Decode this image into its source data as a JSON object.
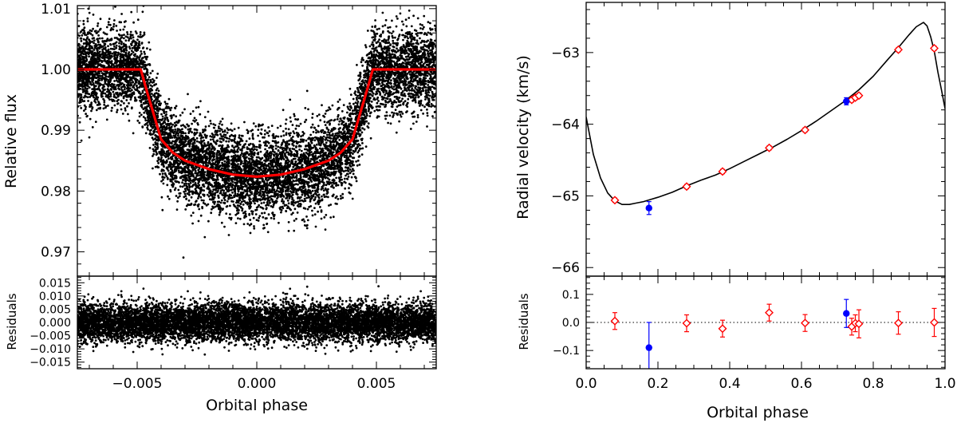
{
  "chart_data": [
    {
      "id": "lc_top",
      "type": "scatter",
      "xlabel": "",
      "ylabel": "Relative flux",
      "xlim": [
        -0.0075,
        0.0075
      ],
      "ylim": [
        0.966,
        1.0105
      ],
      "xticks": [
        -0.005,
        0.0,
        0.005
      ],
      "xtick_labels": [
        "",
        "",
        ""
      ],
      "yticks": [
        0.97,
        0.98,
        0.99,
        1.0,
        1.01
      ],
      "ytick_labels": [
        "0.97",
        "0.98",
        "0.99",
        "1.00",
        "1.01"
      ],
      "scatter_color": "#000000",
      "model_color": "#ff0000",
      "model": {
        "name": "transit model",
        "points": [
          [
            -0.0075,
            1.0
          ],
          [
            -0.00485,
            1.0
          ],
          [
            -0.0046,
            0.9965
          ],
          [
            -0.0043,
            0.9925
          ],
          [
            -0.004,
            0.9885
          ],
          [
            -0.0035,
            0.9863
          ],
          [
            -0.003,
            0.985
          ],
          [
            -0.002,
            0.9836
          ],
          [
            -0.001,
            0.9827
          ],
          [
            0.0,
            0.98235
          ],
          [
            0.001,
            0.9827
          ],
          [
            0.002,
            0.9836
          ],
          [
            0.003,
            0.985
          ],
          [
            0.0035,
            0.9863
          ],
          [
            0.004,
            0.9885
          ],
          [
            0.0043,
            0.9925
          ],
          [
            0.0046,
            0.9965
          ],
          [
            0.00485,
            1.0
          ],
          [
            0.0075,
            1.0
          ]
        ]
      },
      "scatter": {
        "name": "photometry",
        "n_points": 9000,
        "scatter_sigma": 0.0042
      }
    },
    {
      "id": "lc_resid",
      "type": "scatter",
      "xlabel": "Orbital phase",
      "ylabel": "Residuals",
      "xlim": [
        -0.0075,
        0.0075
      ],
      "ylim": [
        -0.0175,
        0.0175
      ],
      "xticks": [
        -0.005,
        0.0,
        0.005
      ],
      "xtick_labels": [
        "−0.005",
        "0.000",
        "0.005"
      ],
      "yticks": [
        -0.015,
        -0.01,
        -0.005,
        0.0,
        0.005,
        0.01,
        0.015
      ],
      "ytick_labels": [
        "−0.015",
        "−0.010",
        "−0.005",
        "0.000",
        "0.005",
        "0.010",
        "0.015"
      ],
      "scatter": {
        "name": "residuals",
        "n_points": 9000,
        "scatter_sigma": 0.0042
      }
    },
    {
      "id": "rv_top",
      "type": "scatter",
      "xlabel": "",
      "ylabel": "Radial velocity (km/s)",
      "xlim": [
        0.0,
        1.0
      ],
      "ylim": [
        -66.12,
        -62.3
      ],
      "xticks": [
        0.0,
        0.2,
        0.4,
        0.6,
        0.8,
        1.0
      ],
      "xtick_labels": [
        "",
        "",
        "",
        "",
        "",
        ""
      ],
      "yticks": [
        -66,
        -65,
        -64,
        -63
      ],
      "ytick_labels": [
        "−66",
        "−65",
        "−64",
        "−63"
      ],
      "model": {
        "name": "orbit model",
        "color": "#000000",
        "points": [
          [
            0.0,
            -63.9
          ],
          [
            0.02,
            -64.42
          ],
          [
            0.04,
            -64.75
          ],
          [
            0.06,
            -64.96
          ],
          [
            0.08,
            -65.07
          ],
          [
            0.1,
            -65.12
          ],
          [
            0.12,
            -65.12
          ],
          [
            0.14,
            -65.1
          ],
          [
            0.16,
            -65.08
          ],
          [
            0.18,
            -65.05
          ],
          [
            0.2,
            -65.02
          ],
          [
            0.24,
            -64.95
          ],
          [
            0.28,
            -64.86
          ],
          [
            0.32,
            -64.78
          ],
          [
            0.36,
            -64.71
          ],
          [
            0.4,
            -64.62
          ],
          [
            0.44,
            -64.52
          ],
          [
            0.48,
            -64.42
          ],
          [
            0.52,
            -64.32
          ],
          [
            0.56,
            -64.21
          ],
          [
            0.6,
            -64.09
          ],
          [
            0.64,
            -63.96
          ],
          [
            0.68,
            -63.82
          ],
          [
            0.72,
            -63.68
          ],
          [
            0.76,
            -63.52
          ],
          [
            0.8,
            -63.33
          ],
          [
            0.84,
            -63.1
          ],
          [
            0.87,
            -62.93
          ],
          [
            0.9,
            -62.75
          ],
          [
            0.92,
            -62.64
          ],
          [
            0.94,
            -62.58
          ],
          [
            0.95,
            -62.63
          ],
          [
            0.96,
            -62.78
          ],
          [
            0.97,
            -62.98
          ],
          [
            0.98,
            -63.27
          ],
          [
            0.99,
            -63.52
          ],
          [
            1.0,
            -63.78
          ]
        ]
      },
      "series": [
        {
          "name": "red",
          "color": "#ff0000",
          "marker": "diamond",
          "x": [
            0.08,
            0.28,
            0.38,
            0.51,
            0.61,
            0.74,
            0.75,
            0.76,
            0.87,
            0.97
          ],
          "y": [
            -65.06,
            -64.87,
            -64.66,
            -64.33,
            -64.08,
            -63.66,
            -63.63,
            -63.6,
            -62.96,
            -62.94
          ],
          "err": [
            0.03,
            0.03,
            0.03,
            0.03,
            0.03,
            0.03,
            0.03,
            0.03,
            0.03,
            0.03
          ]
        },
        {
          "name": "blue",
          "color": "#0000ff",
          "marker": "circle",
          "x": [
            0.175,
            0.725
          ],
          "y": [
            -65.17,
            -63.68
          ],
          "err": [
            0.09,
            0.05
          ]
        }
      ]
    },
    {
      "id": "rv_resid",
      "type": "scatter",
      "xlabel": "Orbital phase",
      "ylabel": "Residuals",
      "xlim": [
        0.0,
        1.0
      ],
      "ylim": [
        -0.165,
        0.165
      ],
      "xticks": [
        0.0,
        0.2,
        0.4,
        0.6,
        0.8,
        1.0
      ],
      "xtick_labels": [
        "0.0",
        "0.2",
        "0.4",
        "0.6",
        "0.8",
        "1.0"
      ],
      "yticks": [
        -0.1,
        0.0,
        0.1
      ],
      "ytick_labels": [
        "−0.1",
        "0.0",
        "0.1"
      ],
      "zero_line": "dotted",
      "series": [
        {
          "name": "red",
          "color": "#ff0000",
          "marker": "diamond",
          "x": [
            0.08,
            0.28,
            0.38,
            0.51,
            0.61,
            0.74,
            0.75,
            0.76,
            0.87,
            0.97
          ],
          "y": [
            0.005,
            -0.003,
            -0.022,
            0.035,
            -0.002,
            -0.015,
            -0.003,
            -0.005,
            -0.002,
            0.0
          ],
          "err": [
            0.03,
            0.03,
            0.03,
            0.03,
            0.03,
            0.03,
            0.03,
            0.05,
            0.04,
            0.05
          ]
        },
        {
          "name": "blue",
          "color": "#0000ff",
          "marker": "circle",
          "x": [
            0.175,
            0.725
          ],
          "y": [
            -0.09,
            0.032
          ],
          "err": [
            0.09,
            0.05
          ]
        }
      ]
    }
  ]
}
